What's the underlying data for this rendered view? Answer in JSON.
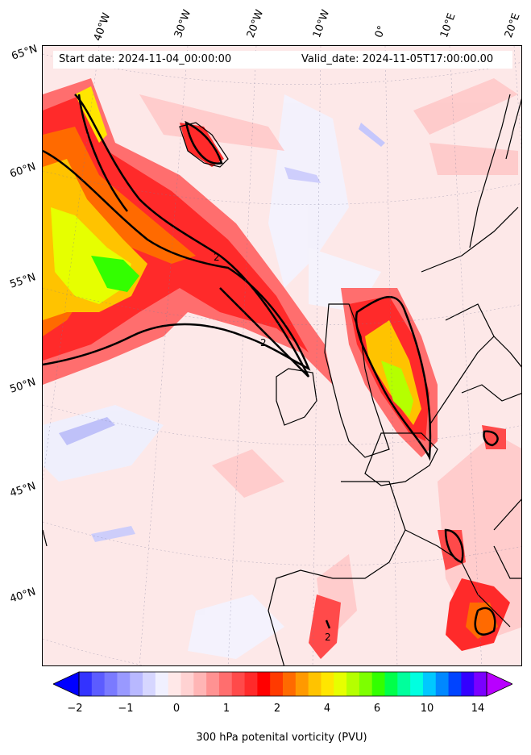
{
  "map": {
    "start_label": "Start date: 2024-11-04_00:00:00",
    "valid_label": "Valid_date: 2024-11-05T17:00:00.00",
    "lon_labels": [
      "40°W",
      "30°W",
      "20°W",
      "10°W",
      "0°",
      "10°E",
      "20°E"
    ],
    "lat_labels": [
      "65°N",
      "60°N",
      "55°N",
      "50°N",
      "45°N",
      "40°N"
    ],
    "contour_label": "2"
  },
  "colorbar": {
    "title": "300 hPa potenital vorticity (PVU)",
    "ticks": [
      "−2",
      "−1",
      "0",
      "1",
      "2",
      "4",
      "6",
      "10",
      "14"
    ],
    "colors": [
      "#0000ff",
      "#3333ff",
      "#5c5cff",
      "#7a7aff",
      "#9999ff",
      "#b8b8ff",
      "#d6d6ff",
      "#f0f0ff",
      "#ffe8e8",
      "#ffd2d2",
      "#ffb5b5",
      "#ff9292",
      "#ff6e6e",
      "#ff4a4a",
      "#ff2a2a",
      "#ff0000",
      "#ff3a00",
      "#ff6a00",
      "#ff9900",
      "#ffc300",
      "#ffe600",
      "#e6ff00",
      "#b5ff00",
      "#7dff00",
      "#33ff00",
      "#00ff4a",
      "#00ff9c",
      "#00ffe0",
      "#00c8ff",
      "#0088ff",
      "#0044ff",
      "#3300ff",
      "#7a00ff",
      "#b800ff"
    ]
  }
}
